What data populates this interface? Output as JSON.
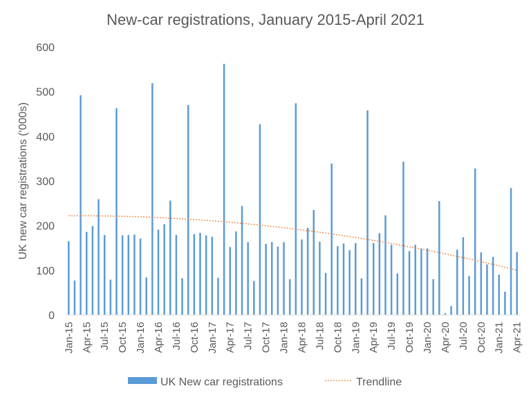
{
  "chart_data": {
    "type": "bar",
    "title": "New-car registrations, January 2015-April 2021",
    "xlabel": "",
    "ylabel": "UK new car registrations (‘000s)",
    "ylim": [
      0,
      600
    ],
    "yticks": [
      0,
      100,
      200,
      300,
      400,
      500,
      600
    ],
    "x_tick_labels": [
      "Jan-15",
      "Apr-15",
      "Jul-15",
      "Oct-15",
      "Jan-16",
      "Apr-16",
      "Jul-16",
      "Oct-16",
      "Jan-17",
      "Apr-17",
      "Jul-17",
      "Oct-17",
      "Jan-18",
      "Apr-18",
      "Jul-18",
      "Oct-18",
      "Jan-19",
      "Apr-19",
      "Jul-19",
      "Oct-19",
      "Jan-20",
      "Apr-20",
      "Jul-20",
      "Oct-20",
      "Jan-21",
      "Apr-21"
    ],
    "categories": [
      "Jan-15",
      "Feb-15",
      "Mar-15",
      "Apr-15",
      "May-15",
      "Jun-15",
      "Jul-15",
      "Aug-15",
      "Sep-15",
      "Oct-15",
      "Nov-15",
      "Dec-15",
      "Jan-16",
      "Feb-16",
      "Mar-16",
      "Apr-16",
      "May-16",
      "Jun-16",
      "Jul-16",
      "Aug-16",
      "Sep-16",
      "Oct-16",
      "Nov-16",
      "Dec-16",
      "Jan-17",
      "Feb-17",
      "Mar-17",
      "Apr-17",
      "May-17",
      "Jun-17",
      "Jul-17",
      "Aug-17",
      "Sep-17",
      "Oct-17",
      "Nov-17",
      "Dec-17",
      "Jan-18",
      "Feb-18",
      "Mar-18",
      "Apr-18",
      "May-18",
      "Jun-18",
      "Jul-18",
      "Aug-18",
      "Sep-18",
      "Oct-18",
      "Nov-18",
      "Dec-18",
      "Jan-19",
      "Feb-19",
      "Mar-19",
      "Apr-19",
      "May-19",
      "Jun-19",
      "Jul-19",
      "Aug-19",
      "Sep-19",
      "Oct-19",
      "Nov-19",
      "Dec-19",
      "Jan-20",
      "Feb-20",
      "Mar-20",
      "Apr-20",
      "May-20",
      "Jun-20",
      "Jul-20",
      "Aug-20",
      "Sep-20",
      "Oct-20",
      "Nov-20",
      "Dec-20",
      "Jan-21",
      "Feb-21",
      "Mar-21",
      "Apr-21"
    ],
    "series": [
      {
        "name": "UK New car registrations",
        "color": "#5B9BD5",
        "values": [
          165,
          77,
          492,
          186,
          199,
          259,
          179,
          79,
          463,
          178,
          179,
          180,
          171,
          84,
          519,
          191,
          203,
          256,
          179,
          82,
          470,
          181,
          184,
          178,
          175,
          83,
          562,
          152,
          187,
          244,
          163,
          76,
          427,
          159,
          163,
          153,
          163,
          80,
          474,
          169,
          195,
          235,
          164,
          94,
          339,
          154,
          160,
          145,
          161,
          82,
          458,
          161,
          183,
          223,
          157,
          93,
          343,
          143,
          157,
          149,
          149,
          80,
          255,
          4,
          20,
          146,
          174,
          87,
          328,
          140,
          113,
          130,
          90,
          52,
          284,
          141
        ]
      },
      {
        "name": "Trendline",
        "type": "line",
        "style": "dotted",
        "color": "#ED7D31",
        "poly": [
          222,
          0.07,
          -0.0226
        ]
      }
    ],
    "grid": false,
    "legend_position": "bottom"
  }
}
